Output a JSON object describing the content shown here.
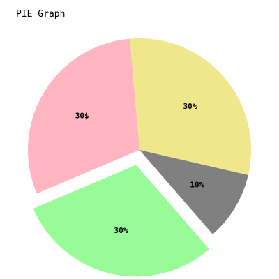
{
  "chart_data": {
    "type": "pie",
    "title": "PIE Graph",
    "slices": [
      {
        "value": 30,
        "label": "30%",
        "color": "#f0e68c",
        "exploded": false
      },
      {
        "value": 10,
        "label": "10%",
        "color": "#808080",
        "exploded": false
      },
      {
        "value": 30,
        "label": "30%",
        "color": "#98fb98",
        "exploded": true
      },
      {
        "value": 30,
        "label": "30$",
        "color": "#ffb6c1",
        "exploded": false
      }
    ]
  }
}
